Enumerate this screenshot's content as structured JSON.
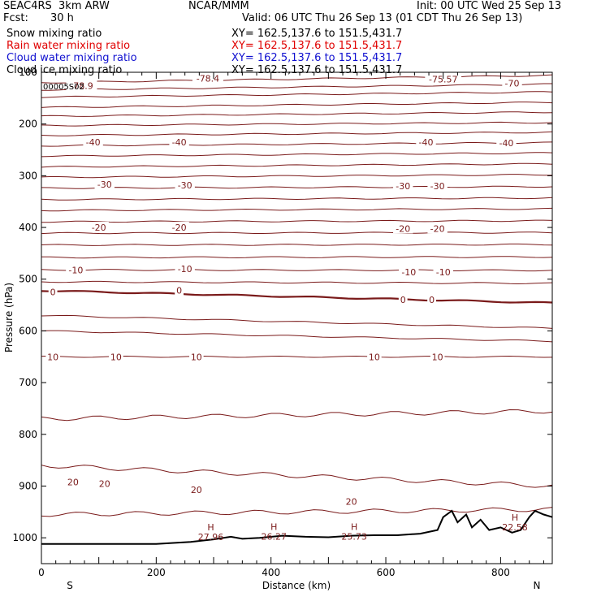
{
  "header": {
    "model": "SEAC4RS  3km ARW",
    "org": "NCAR/MMM",
    "init": "Init: 00 UTC Wed 25 Sep 13",
    "fcst_label": "Fcst:",
    "fcst_value": "30 h",
    "valid": "Valid: 06 UTC Thu 26 Sep 13 (01 CDT Thu 26 Sep 13)"
  },
  "fields": [
    {
      "name": "Snow mixing ratio",
      "xy": "XY= 162.5,137.6 to 151.5,431.7",
      "color": "#000000"
    },
    {
      "name": "Rain water mixing ratio",
      "xy": "XY= 162.5,137.6 to 151.5,431.7",
      "color": "#e00000"
    },
    {
      "name": "Cloud water mixing ratio",
      "xy": "XY= 162.5,137.6 to 151.5,431.7",
      "color": "#1010d0"
    },
    {
      "name": "Cloud ice mixing ratio",
      "xy": "XY= 162.5,137.6 to 151.5,431.7",
      "color": "#000000"
    }
  ],
  "chart_data": {
    "type": "line",
    "xlabel": "Distance (km)",
    "ylabel": "Pressure (hPa)",
    "xlim": [
      0,
      890
    ],
    "ylim": [
      1050,
      100
    ],
    "xticks": [
      0,
      200,
      400,
      600,
      800
    ],
    "yticks": [
      100,
      200,
      300,
      400,
      500,
      600,
      700,
      800,
      900,
      1000
    ],
    "ytick_labels": [
      "100",
      "200",
      "300",
      "400",
      "500",
      "600",
      "700",
      "800",
      "900",
      "1000"
    ],
    "direction_left": "S",
    "direction_right": "N",
    "contour_color": "#7a1a1a",
    "isotherms": [
      {
        "p0": 120,
        "p1": 106
      },
      {
        "p0": 134,
        "p1": 123
      },
      {
        "p0": 148,
        "p1": 138
      },
      {
        "p0": 168,
        "p1": 158
      },
      {
        "p0": 185,
        "p1": 177
      },
      {
        "p0": 203,
        "p1": 197
      },
      {
        "p0": 222,
        "p1": 216
      },
      {
        "p0": 242,
        "p1": 236
      },
      {
        "p0": 262,
        "p1": 256
      },
      {
        "p0": 283,
        "p1": 277
      },
      {
        "p0": 303,
        "p1": 298
      },
      {
        "p0": 324,
        "p1": 321
      },
      {
        "p0": 346,
        "p1": 343
      },
      {
        "p0": 367,
        "p1": 364
      },
      {
        "p0": 389,
        "p1": 387
      },
      {
        "p0": 411,
        "p1": 410
      },
      {
        "p0": 434,
        "p1": 433
      },
      {
        "p0": 458,
        "p1": 457
      },
      {
        "p0": 482,
        "p1": 483
      },
      {
        "p0": 505,
        "p1": 508
      },
      {
        "p0": 522,
        "p1": 546,
        "zero": true
      },
      {
        "p0": 570,
        "p1": 595
      },
      {
        "p0": 600,
        "p1": 620
      },
      {
        "p0": 650,
        "p1": 650
      },
      {
        "p0": 770,
        "p1": 755
      },
      {
        "p0": 860,
        "p1": 900
      },
      {
        "p0": 955,
        "p1": 945
      }
    ],
    "contour_labels": [
      {
        "text": "-78.9",
        "x": 70,
        "p": 126
      },
      {
        "text": "-78.4",
        "x": 290,
        "p": 112
      },
      {
        "text": "-75.57",
        "x": 700,
        "p": 113
      },
      {
        "text": "-70",
        "x": 820,
        "p": 121
      },
      {
        "text": "-40",
        "x": 90,
        "p": 235
      },
      {
        "text": "-40",
        "x": 240,
        "p": 235
      },
      {
        "text": "-40",
        "x": 670,
        "p": 235
      },
      {
        "text": "-40",
        "x": 810,
        "p": 237
      },
      {
        "text": "-30",
        "x": 110,
        "p": 317
      },
      {
        "text": "-30",
        "x": 250,
        "p": 318
      },
      {
        "text": "-30",
        "x": 630,
        "p": 320
      },
      {
        "text": "-30",
        "x": 690,
        "p": 320
      },
      {
        "text": "-20",
        "x": 100,
        "p": 400
      },
      {
        "text": "-20",
        "x": 240,
        "p": 400
      },
      {
        "text": "-20",
        "x": 630,
        "p": 402
      },
      {
        "text": "-20",
        "x": 690,
        "p": 402
      },
      {
        "text": "-10",
        "x": 60,
        "p": 482
      },
      {
        "text": "-10",
        "x": 250,
        "p": 480
      },
      {
        "text": "-10",
        "x": 640,
        "p": 486
      },
      {
        "text": "-10",
        "x": 700,
        "p": 486
      },
      {
        "text": "0",
        "x": 20,
        "p": 525
      },
      {
        "text": "0",
        "x": 240,
        "p": 522
      },
      {
        "text": "0",
        "x": 630,
        "p": 540
      },
      {
        "text": "0",
        "x": 680,
        "p": 540
      },
      {
        "text": "10",
        "x": 20,
        "p": 650
      },
      {
        "text": "10",
        "x": 130,
        "p": 650
      },
      {
        "text": "10",
        "x": 270,
        "p": 650
      },
      {
        "text": "10",
        "x": 580,
        "p": 650
      },
      {
        "text": "10",
        "x": 690,
        "p": 650
      },
      {
        "text": "20",
        "x": 55,
        "p": 892
      },
      {
        "text": "20",
        "x": 110,
        "p": 895
      },
      {
        "text": "20",
        "x": 270,
        "p": 907
      },
      {
        "text": "20",
        "x": 540,
        "p": 930
      }
    ],
    "terrain": [
      [
        0,
        1012
      ],
      [
        100,
        1012
      ],
      [
        200,
        1012
      ],
      [
        260,
        1008
      ],
      [
        300,
        1003
      ],
      [
        330,
        998
      ],
      [
        350,
        1002
      ],
      [
        380,
        1000
      ],
      [
        420,
        996
      ],
      [
        460,
        998
      ],
      [
        500,
        999
      ],
      [
        540,
        996
      ],
      [
        580,
        995
      ],
      [
        620,
        995
      ],
      [
        660,
        992
      ],
      [
        690,
        985
      ],
      [
        700,
        960
      ],
      [
        715,
        948
      ],
      [
        725,
        970
      ],
      [
        740,
        955
      ],
      [
        750,
        980
      ],
      [
        765,
        965
      ],
      [
        780,
        985
      ],
      [
        800,
        980
      ],
      [
        820,
        990
      ],
      [
        835,
        985
      ],
      [
        850,
        960
      ],
      [
        860,
        948
      ],
      [
        875,
        955
      ],
      [
        890,
        960
      ]
    ],
    "highs": [
      {
        "label": "H",
        "value": "27.96",
        "x": 295,
        "p": 986
      },
      {
        "label": "H",
        "value": "26.27",
        "x": 405,
        "p": 985
      },
      {
        "label": "H",
        "value": "25.73",
        "x": 545,
        "p": 985
      },
      {
        "label": "H",
        "value": "22.58",
        "x": 825,
        "p": 967
      }
    ],
    "overlap_text": "00005S02"
  }
}
